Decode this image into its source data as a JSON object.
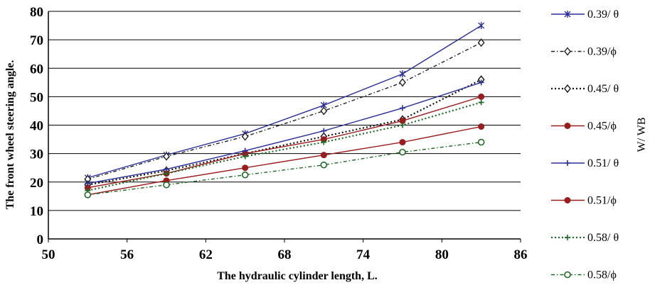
{
  "chart_data": {
    "type": "line",
    "xlabel": "The hydraulic cylinder length, L.",
    "ylabel": "The front wheel steering angle.",
    "legend_title": "W/ WB",
    "xlim": [
      50,
      86
    ],
    "ylim": [
      0,
      80
    ],
    "x_ticks": [
      50,
      56,
      62,
      68,
      74,
      80,
      86
    ],
    "y_ticks": [
      0,
      10,
      20,
      30,
      40,
      50,
      60,
      70,
      80
    ],
    "grid": "horizontal",
    "legend_position": "right",
    "x": [
      53,
      59,
      65,
      71,
      77,
      83
    ],
    "series": [
      {
        "name": "0.39/ θ",
        "values": [
          21.5,
          29.5,
          37,
          47,
          58,
          75
        ],
        "color": "#2a2f9a",
        "style": "solid",
        "marker": "star"
      },
      {
        "name": "0.39/ϕ",
        "values": [
          21,
          29,
          36,
          45,
          55,
          69
        ],
        "color": "#222222",
        "style": "dashdot",
        "marker": "diamond"
      },
      {
        "name": "0.45/ θ",
        "values": [
          19,
          24,
          30,
          36,
          42,
          56
        ],
        "color": "#111111",
        "style": "dotted",
        "marker": "diamond"
      },
      {
        "name": "0.45/ϕ",
        "values": [
          18,
          23,
          30,
          35,
          41.5,
          50
        ],
        "color": "#9b1c1c",
        "style": "solid",
        "marker": "dot"
      },
      {
        "name": "0.51/ θ",
        "values": [
          19.5,
          24.5,
          31,
          38,
          46,
          55
        ],
        "color": "#2a2f9a",
        "style": "solid",
        "marker": "plus"
      },
      {
        "name": "0.51/ϕ",
        "values": [
          15.5,
          20.5,
          25,
          29.5,
          34,
          39.5
        ],
        "color": "#9b1c1c",
        "style": "solid",
        "marker": "dot"
      },
      {
        "name": "0.58/ θ",
        "values": [
          17,
          23,
          29,
          34,
          40,
          48
        ],
        "color": "#1d6b24",
        "style": "dotted",
        "marker": "plus"
      },
      {
        "name": "0.58/ϕ",
        "values": [
          15.5,
          19,
          22.5,
          26,
          30.5,
          34
        ],
        "color": "#1d6b24",
        "style": "dashdot",
        "marker": "circle"
      }
    ]
  }
}
